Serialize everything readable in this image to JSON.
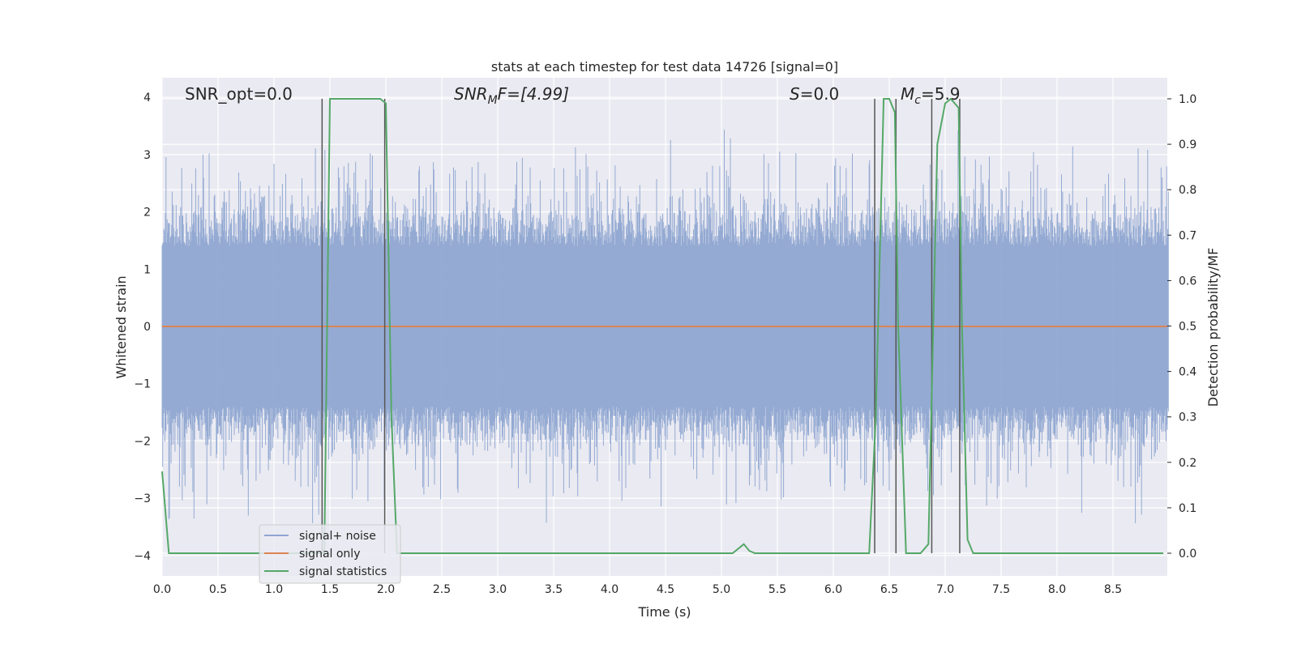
{
  "chart_data": {
    "type": "line",
    "title": "stats at each timestep for test data 14726 [signal=0]",
    "xlabel": "Time (s)",
    "ylabel": "Whitened strain",
    "y2label": "Detection probability/MF",
    "xlim": [
      0.0,
      9.0
    ],
    "ylim": [
      -4.4,
      4.3
    ],
    "y2lim": [
      -0.05,
      1.045
    ],
    "x_ticks": [
      "0.0",
      "0.5",
      "1.0",
      "1.5",
      "2.0",
      "2.5",
      "3.0",
      "3.5",
      "4.0",
      "4.5",
      "5.0",
      "5.5",
      "6.0",
      "6.5",
      "7.0",
      "7.5",
      "8.0",
      "8.5"
    ],
    "y_ticks": [
      "−4",
      "−3",
      "−2",
      "−1",
      "0",
      "1",
      "2",
      "3",
      "4"
    ],
    "y2_ticks": [
      "0.0",
      "0.1",
      "0.2",
      "0.3",
      "0.4",
      "0.5",
      "0.6",
      "0.7",
      "0.8",
      "0.9",
      "1.0"
    ],
    "grid": true,
    "legend_position": "lower-left",
    "annotations": {
      "snr_opt": "SNR_opt=0.0",
      "snr_mf_base": "SNR",
      "snr_mf_sub": "M",
      "snr_mf_rest": "F=[4.99]",
      "s_base": "S",
      "s_rest": "=0.0",
      "mc_base": "M",
      "mc_sub": "c",
      "mc_rest": "=5.9"
    },
    "series": [
      {
        "name": "signal+ noise",
        "axis": "left",
        "color": "#8fa6d1",
        "description_range": [
          -3.7,
          3.9
        ],
        "typical_amplitude": 2.0
      },
      {
        "name": "signal only",
        "axis": "left",
        "color": "#dd8452",
        "x": [
          0.0,
          9.0
        ],
        "y": [
          0.0,
          0.0
        ]
      },
      {
        "name": "signal statistics",
        "axis": "right",
        "color": "#55a868",
        "x": [
          0.0,
          0.06,
          0.12,
          1.43,
          1.45,
          1.5,
          1.95,
          2.0,
          2.05,
          2.1,
          5.1,
          5.2,
          5.25,
          5.3,
          6.32,
          6.38,
          6.45,
          6.5,
          6.55,
          6.58,
          6.65,
          6.72,
          6.78,
          6.85,
          6.93,
          7.0,
          7.05,
          7.12,
          7.15,
          7.2,
          7.25,
          8.95
        ],
        "y": [
          0.18,
          0.0,
          0.0,
          0.0,
          0.0,
          1.0,
          1.0,
          0.99,
          0.3,
          0.0,
          0.0,
          0.02,
          0.005,
          0.0,
          0.0,
          0.3,
          1.0,
          1.0,
          0.97,
          0.5,
          0.0,
          0.0,
          0.0,
          0.02,
          0.9,
          0.99,
          1.0,
          0.98,
          0.5,
          0.03,
          0.0,
          0.0
        ]
      }
    ],
    "vertical_lines": [
      1.43,
      1.99,
      6.37,
      6.56,
      6.88,
      7.13
    ],
    "legend": [
      "signal+ noise",
      "signal only",
      "signal statistics"
    ]
  }
}
